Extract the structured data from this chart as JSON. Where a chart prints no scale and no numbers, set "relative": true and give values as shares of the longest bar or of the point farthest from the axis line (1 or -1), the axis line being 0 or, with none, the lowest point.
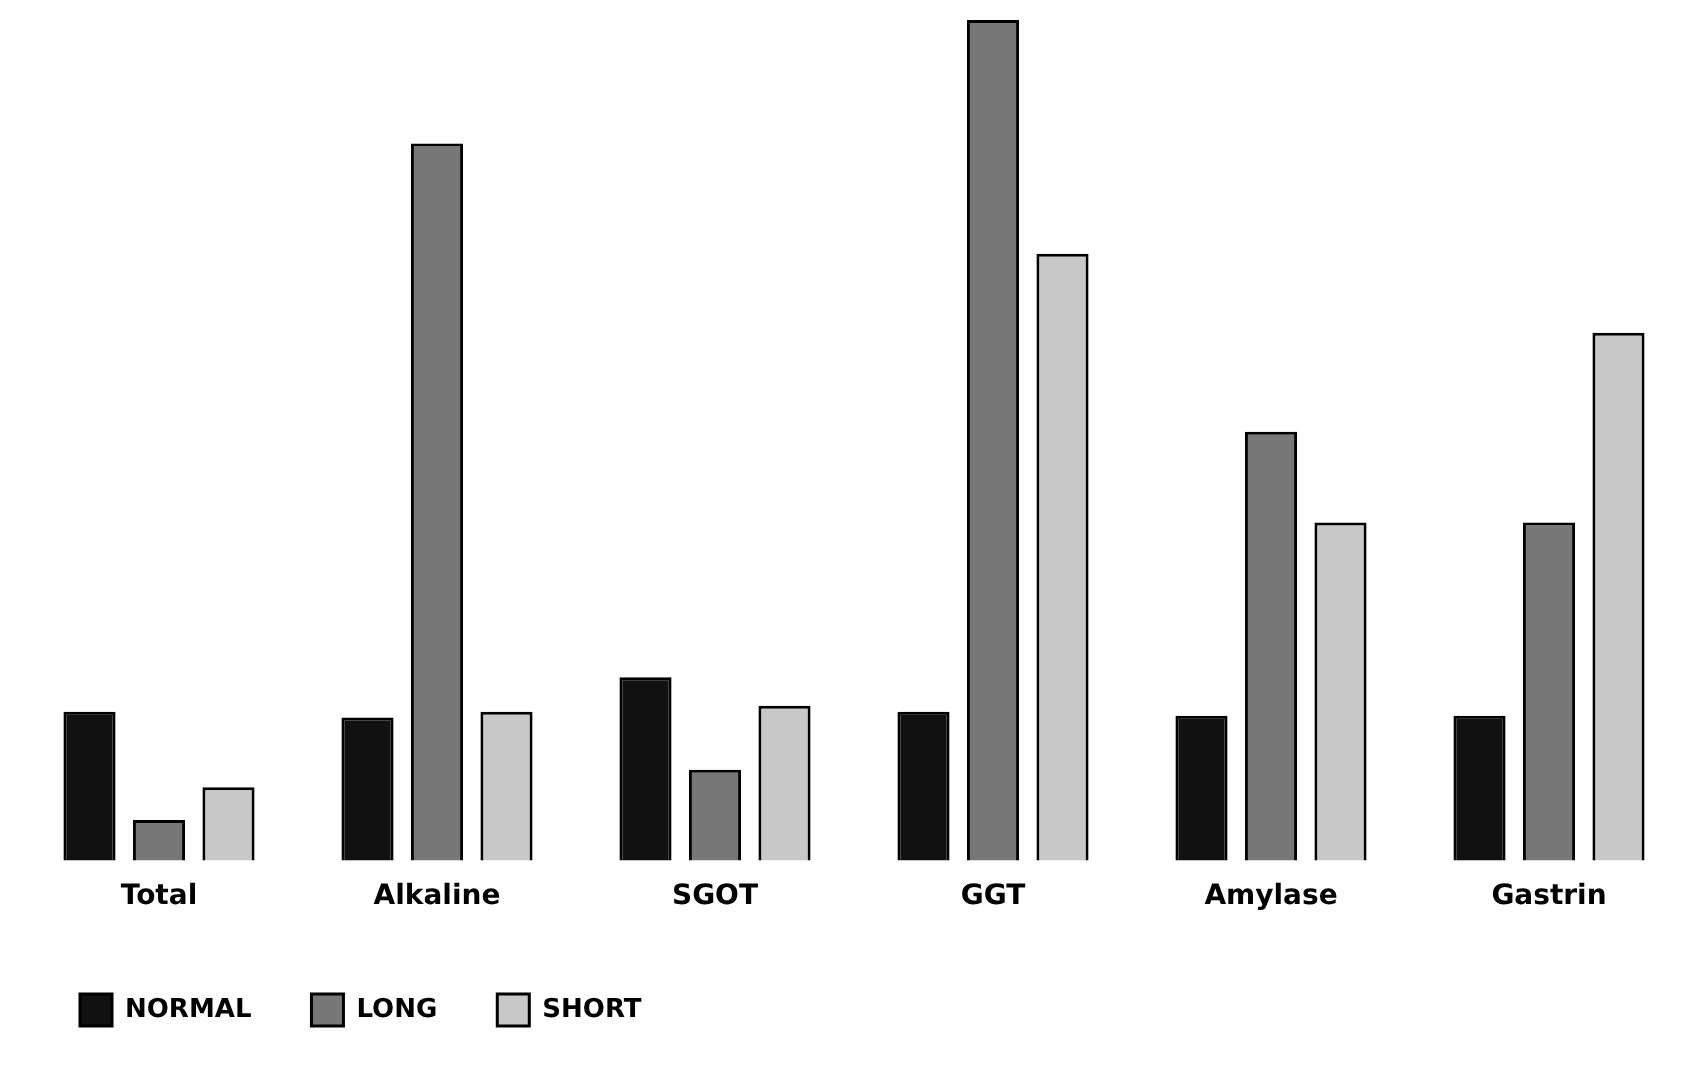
{
  "chart_data": {
    "type": "bar",
    "relative": true,
    "categories": [
      "Total",
      "Alkaline",
      "SGOT",
      "GGT",
      "Amylase",
      "Gastrin"
    ],
    "series": [
      {
        "name": "NORMAL",
        "color": "#111111",
        "values": [
          0.177,
          0.17,
          0.218,
          0.177,
          0.172,
          0.172
        ]
      },
      {
        "name": "LONG",
        "color": "#777777",
        "values": [
          0.048,
          0.853,
          0.108,
          1,
          0.51,
          0.402
        ]
      },
      {
        "name": "SHORT",
        "color": "#c8c8c8",
        "values": [
          0.087,
          0.177,
          0.184,
          0.722,
          0.402,
          0.628
        ]
      }
    ],
    "legend": "bottom left",
    "grid": false
  }
}
